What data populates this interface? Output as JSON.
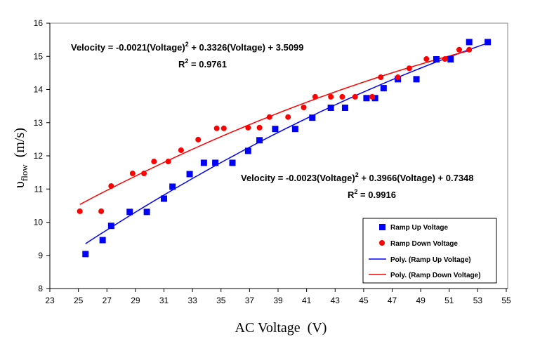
{
  "chart_data": {
    "type": "scatter",
    "xlabel": "AC Voltage  (V)",
    "ylabel_main": "υ",
    "ylabel_sub": "flow",
    "ylabel_units": "(m/s)",
    "xlim": [
      23,
      55
    ],
    "ylim": [
      8,
      16
    ],
    "xticks": [
      23,
      25,
      27,
      29,
      31,
      33,
      35,
      37,
      39,
      41,
      43,
      45,
      47,
      49,
      51,
      53,
      55
    ],
    "yticks": [
      8,
      9,
      10,
      11,
      12,
      13,
      14,
      15,
      16
    ],
    "grid": false,
    "legend_position": "bottom-right",
    "series": [
      {
        "name": "Ramp Up Voltage",
        "marker": "square",
        "color": "#0000FF",
        "x": [
          25.5,
          26.7,
          27.3,
          28.6,
          29.8,
          31.0,
          31.6,
          32.8,
          33.8,
          34.6,
          35.8,
          36.9,
          37.7,
          38.8,
          40.2,
          41.4,
          42.7,
          43.7,
          45.2,
          45.8,
          46.4,
          47.4,
          48.7,
          50.1,
          51.1,
          52.4,
          53.7
        ],
        "y": [
          9.04,
          9.46,
          9.89,
          10.31,
          10.31,
          10.71,
          11.07,
          11.45,
          11.79,
          11.79,
          11.79,
          12.15,
          12.47,
          12.81,
          12.81,
          13.15,
          13.45,
          13.45,
          13.74,
          13.74,
          14.04,
          14.31,
          14.31,
          14.91,
          14.91,
          15.43,
          15.43
        ]
      },
      {
        "name": "Ramp Down Voltage",
        "marker": "circle",
        "color": "#FF0000",
        "x": [
          25.1,
          26.6,
          27.3,
          28.8,
          29.6,
          30.3,
          31.3,
          32.2,
          33.4,
          34.7,
          35.2,
          36.9,
          37.7,
          38.4,
          39.7,
          40.8,
          41.6,
          42.7,
          43.5,
          44.4,
          45.6,
          46.2,
          47.4,
          48.2,
          49.4,
          50.7,
          51.7,
          52.4
        ],
        "y": [
          10.33,
          10.33,
          11.09,
          11.47,
          11.47,
          11.83,
          11.83,
          12.17,
          12.49,
          12.83,
          12.83,
          12.85,
          12.85,
          13.17,
          13.17,
          13.46,
          13.78,
          13.78,
          13.78,
          13.78,
          13.78,
          14.37,
          14.37,
          14.64,
          14.92,
          14.92,
          15.2,
          15.2
        ]
      }
    ],
    "trendlines": [
      {
        "name": "Poly. (Ramp Up Voltage)",
        "color": "#0000FF",
        "coeffs": [
          -0.0023,
          0.3966,
          0.7348
        ],
        "x_range": [
          25.5,
          53.7
        ],
        "equation": "Velocity = -0.0023(Voltage)",
        "equation_sup": "2",
        "equation_rest": " + 0.3966(Voltage) + 0.7348",
        "r2_label": "R",
        "r2_sup": "2",
        "r2_rest": " = 0.9916"
      },
      {
        "name": "Poly. (Ramp Down Voltage)",
        "color": "#FF0000",
        "coeffs": [
          -0.0021,
          0.3326,
          3.5099
        ],
        "x_range": [
          25.1,
          52.4
        ],
        "equation": "Velocity = -0.0021(Voltage)",
        "equation_sup": "2",
        "equation_rest": " + 0.3326(Voltage) + 3.5099",
        "r2_label": "R",
        "r2_sup": "2",
        "r2_rest": " = 0.9761"
      }
    ]
  }
}
